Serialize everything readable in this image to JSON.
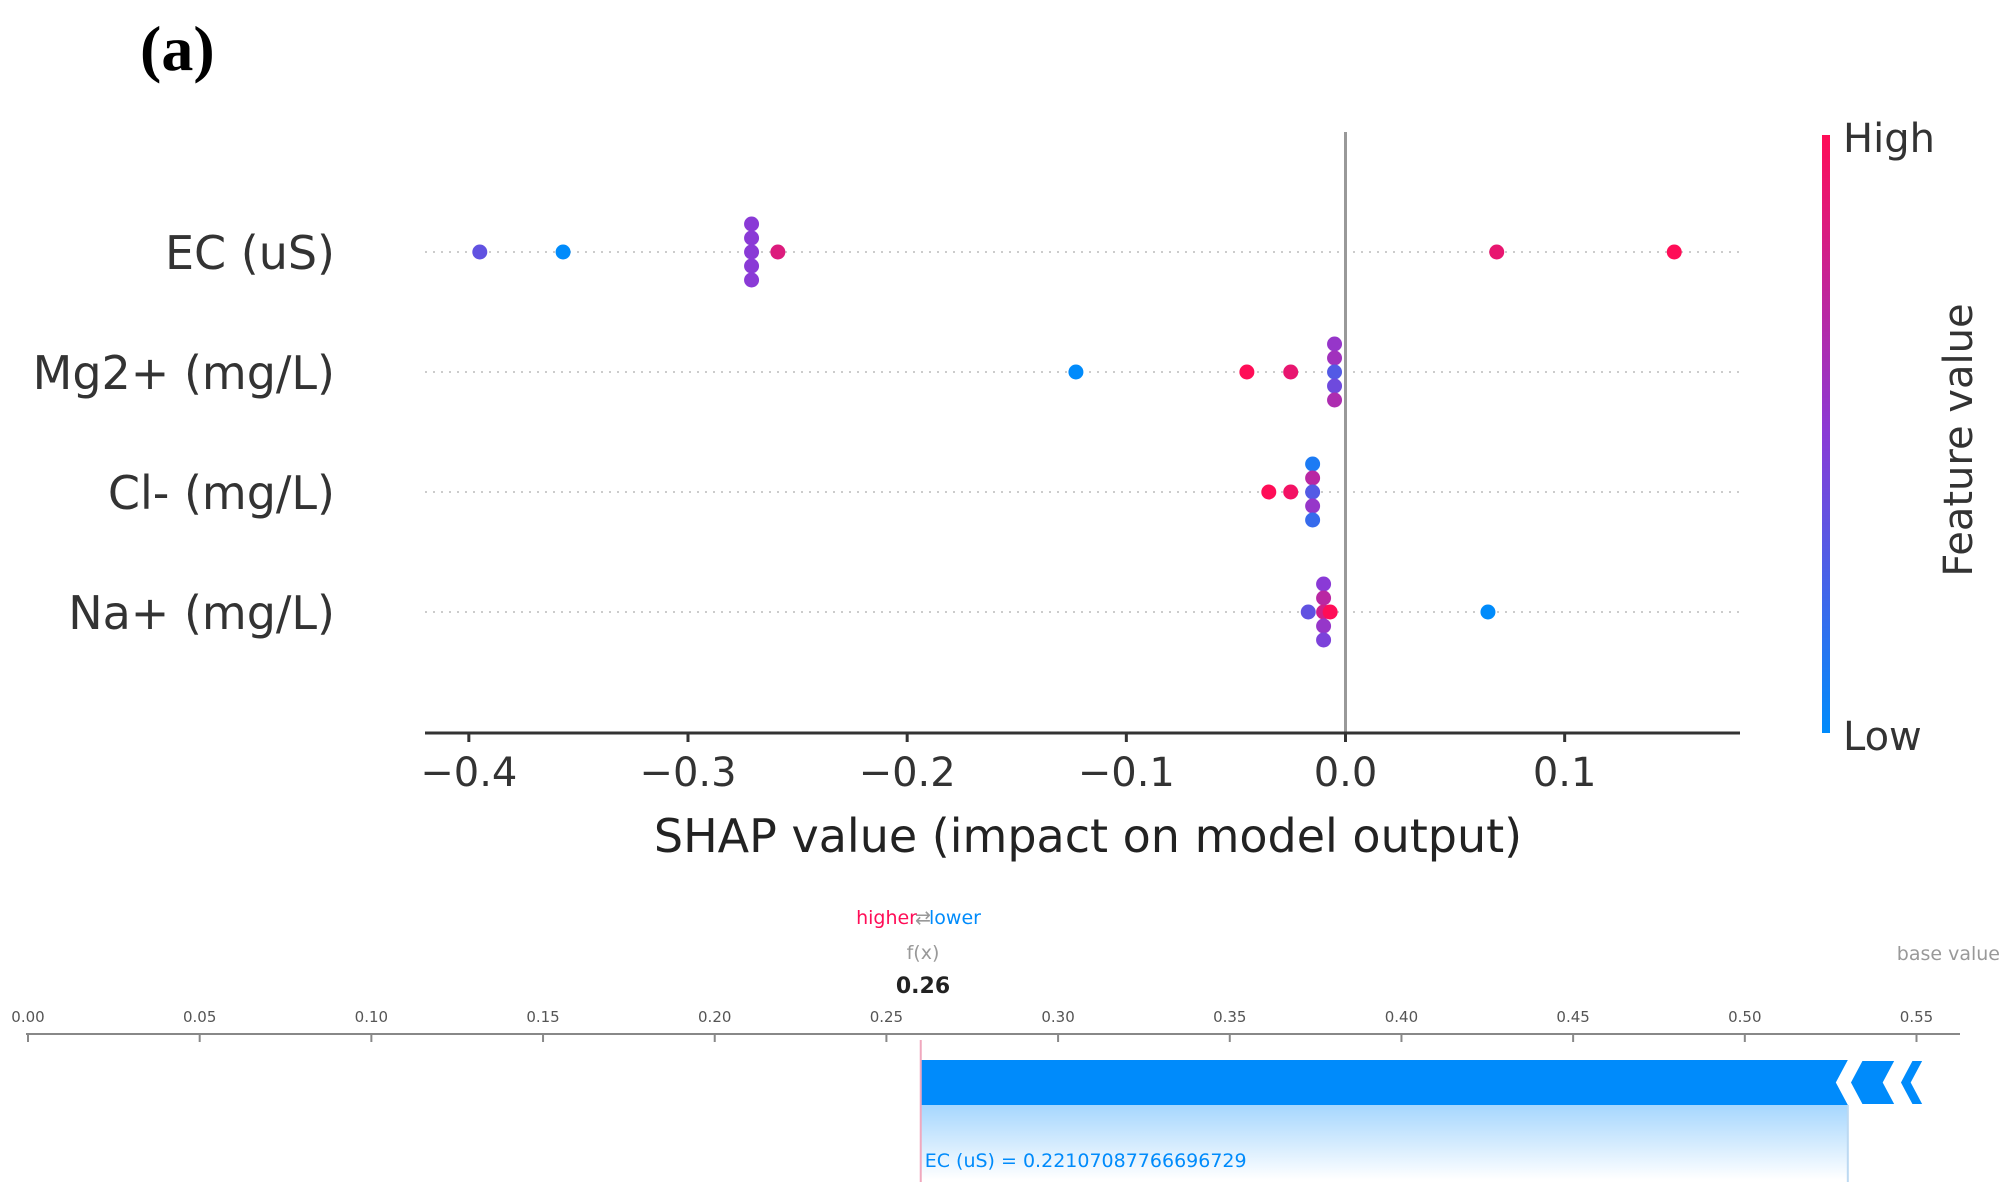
{
  "panel_label": "(a)",
  "colors": {
    "high": "#ff0d57",
    "low": "#008bfb",
    "mid": "#8a3ad6",
    "axis": "#333333",
    "grid": "#cccccc",
    "zero": "#999999"
  },
  "chart_data": [
    {
      "type": "scatter",
      "subtype": "shap-beeswarm",
      "xlabel": "SHAP value (impact on model output)",
      "xlim": [
        -0.42,
        0.18
      ],
      "xticks": [
        -0.4,
        -0.3,
        -0.2,
        -0.1,
        0.0,
        0.1
      ],
      "xtick_labels": [
        "−0.4",
        "−0.3",
        "−0.2",
        "−0.1",
        "0.0",
        "0.1"
      ],
      "colorbar": {
        "label": "Feature value",
        "high_label": "High",
        "low_label": "Low"
      },
      "features": [
        {
          "name": "EC (uS)",
          "points": [
            {
              "x": -0.395,
              "v": 0.35,
              "o": 0
            },
            {
              "x": -0.357,
              "v": 0.0,
              "o": 0
            },
            {
              "x": -0.271,
              "v": 0.5,
              "o": -2
            },
            {
              "x": -0.271,
              "v": 0.5,
              "o": -1
            },
            {
              "x": -0.271,
              "v": 0.5,
              "o": 0
            },
            {
              "x": -0.271,
              "v": 0.5,
              "o": 1
            },
            {
              "x": -0.271,
              "v": 0.5,
              "o": 2
            },
            {
              "x": -0.259,
              "v": 0.85,
              "o": 0
            },
            {
              "x": 0.069,
              "v": 0.9,
              "o": 0
            },
            {
              "x": 0.15,
              "v": 1.0,
              "o": 0
            }
          ]
        },
        {
          "name": "Mg2+ (mg/L)",
          "points": [
            {
              "x": -0.123,
              "v": 0.0,
              "o": 0
            },
            {
              "x": -0.045,
              "v": 1.0,
              "o": 0
            },
            {
              "x": -0.025,
              "v": 0.9,
              "o": 0
            },
            {
              "x": -0.005,
              "v": 0.55,
              "o": -2
            },
            {
              "x": -0.005,
              "v": 0.6,
              "o": -1
            },
            {
              "x": -0.005,
              "v": 0.3,
              "o": 0
            },
            {
              "x": -0.005,
              "v": 0.4,
              "o": 1
            },
            {
              "x": -0.005,
              "v": 0.65,
              "o": 2
            }
          ]
        },
        {
          "name": "Cl- (mg/L)",
          "points": [
            {
              "x": -0.035,
              "v": 1.0,
              "o": 0
            },
            {
              "x": -0.025,
              "v": 0.95,
              "o": 0
            },
            {
              "x": -0.015,
              "v": 0.1,
              "o": -2
            },
            {
              "x": -0.015,
              "v": 0.7,
              "o": -1
            },
            {
              "x": -0.015,
              "v": 0.3,
              "o": 0
            },
            {
              "x": -0.015,
              "v": 0.55,
              "o": 1
            },
            {
              "x": -0.015,
              "v": 0.2,
              "o": 2
            }
          ]
        },
        {
          "name": "Na+ (mg/L)",
          "points": [
            {
              "x": -0.017,
              "v": 0.35,
              "o": 0
            },
            {
              "x": -0.01,
              "v": 0.5,
              "o": -2
            },
            {
              "x": -0.01,
              "v": 0.7,
              "o": -1
            },
            {
              "x": -0.01,
              "v": 0.8,
              "o": 0
            },
            {
              "x": -0.01,
              "v": 0.55,
              "o": 1
            },
            {
              "x": -0.01,
              "v": 0.45,
              "o": 2
            },
            {
              "x": -0.007,
              "v": 1.0,
              "o": 0
            },
            {
              "x": 0.065,
              "v": 0.0,
              "o": 0
            }
          ]
        }
      ]
    },
    {
      "type": "bar",
      "subtype": "shap-force-plot",
      "ticks": [
        "0.00",
        "0.05",
        "0.10",
        "0.15",
        "0.20",
        "0.25",
        "0.30",
        "0.35",
        "0.40",
        "0.45",
        "0.50",
        "0.55"
      ],
      "xlim": [
        0.0,
        0.565
      ],
      "fx_label": "f(x)",
      "fx_value": 0.26,
      "fx_display": "0.26",
      "base_value_label": "base value",
      "base_value": 0.557,
      "higher_label": "higher",
      "lower_label": "lower",
      "arrow_symbol": "⇄",
      "contributions": [
        {
          "feature": "EC (uS)",
          "label": "EC (uS) = 0.22107087766696729",
          "start": 0.26,
          "end": 0.53,
          "direction": "lower"
        }
      ]
    }
  ]
}
